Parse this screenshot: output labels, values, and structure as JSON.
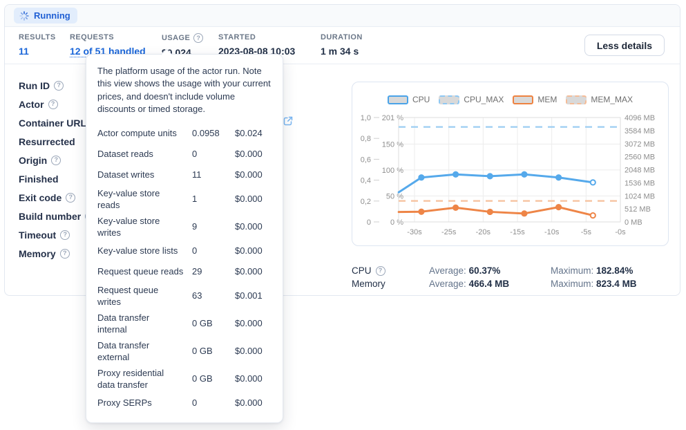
{
  "status": {
    "label": "Running"
  },
  "icons": {
    "help": "?"
  },
  "stats": {
    "results": {
      "label": "RESULTS",
      "value": "11"
    },
    "requests": {
      "label": "REQUESTS",
      "value": "12 of 51 handled"
    },
    "usage": {
      "label": "USAGE",
      "value": "$0.024"
    },
    "started": {
      "label": "STARTED",
      "value": "2023-08-08 10:03"
    },
    "duration": {
      "label": "DURATION",
      "value": "1 m 34 s"
    },
    "less_details_label": "Less details"
  },
  "fields": [
    {
      "label": "Run ID"
    },
    {
      "label": "Actor"
    },
    {
      "label": "Container URL"
    },
    {
      "label": "Resurrected"
    },
    {
      "label": "Origin"
    },
    {
      "label": "Finished"
    },
    {
      "label": "Exit code"
    },
    {
      "label": "Build number"
    },
    {
      "label": "Timeout"
    },
    {
      "label": "Memory"
    }
  ],
  "tooltip": {
    "intro": "The platform usage of the actor run. Note this view shows the usage with your current prices, and doesn't include volume discounts or timed storage.",
    "rows": [
      {
        "label": "Actor compute units",
        "qty": "0.0958",
        "price": "$0.024"
      },
      {
        "label": "Dataset reads",
        "qty": "0",
        "price": "$0.000"
      },
      {
        "label": "Dataset writes",
        "qty": "11",
        "price": "$0.000"
      },
      {
        "label": "Key-value store\nreads",
        "qty": "1",
        "price": "$0.000"
      },
      {
        "label": "Key-value store\nwrites",
        "qty": "9",
        "price": "$0.000"
      },
      {
        "label": "Key-value store lists",
        "qty": "0",
        "price": "$0.000"
      },
      {
        "label": "Request queue reads",
        "qty": "29",
        "price": "$0.000"
      },
      {
        "label": "Request queue\nwrites",
        "qty": "63",
        "price": "$0.001"
      },
      {
        "label": "Data transfer\ninternal",
        "qty": "0 GB",
        "price": "$0.000"
      },
      {
        "label": "Data transfer\nexternal",
        "qty": "0 GB",
        "price": "$0.000"
      },
      {
        "label": "Proxy residential\ndata transfer",
        "qty": "0 GB",
        "price": "$0.000"
      },
      {
        "label": "Proxy SERPs",
        "qty": "0",
        "price": "$0.000"
      }
    ]
  },
  "chart_data": {
    "type": "line",
    "legend": [
      "CPU",
      "CPU_MAX",
      "MEM",
      "MEM_MAX"
    ],
    "x_ticks": [
      "-30s",
      "-25s",
      "-20s",
      "-15s",
      "-10s",
      "-5s",
      "-0s"
    ],
    "left_axis": {
      "unit": "%",
      "max": 201,
      "ticks": [
        0,
        50,
        100,
        150,
        201
      ],
      "normalized_ticks": [
        "0",
        "0,2",
        "0,4",
        "0,6",
        "0,8",
        "1,0"
      ]
    },
    "right_axis": {
      "unit": "MB",
      "max": 4096,
      "ticks": [
        0,
        512,
        1024,
        1536,
        2048,
        2560,
        3072,
        3584,
        4096
      ]
    },
    "series": [
      {
        "name": "CPU",
        "axis": "left",
        "style": "solid",
        "color": "#55a9eb",
        "marker_from": 1,
        "points": [
          [
            -32.3,
            57
          ],
          [
            -29,
            85.5
          ],
          [
            -24,
            91.5
          ],
          [
            -19,
            88
          ],
          [
            -14,
            91.5
          ],
          [
            -9,
            85.5
          ],
          [
            -4,
            76
          ]
        ]
      },
      {
        "name": "CPU_MAX",
        "axis": "left",
        "style": "dashed",
        "color": "#9ccdf2",
        "const": 182.84
      },
      {
        "name": "MEM",
        "axis": "right",
        "style": "solid",
        "color": "#ee8547",
        "marker_from": 1,
        "points": [
          [
            -32.3,
            390
          ],
          [
            -29,
            400
          ],
          [
            -24,
            560
          ],
          [
            -19,
            395
          ],
          [
            -14,
            330
          ],
          [
            -9,
            580
          ],
          [
            -4,
            255
          ]
        ]
      },
      {
        "name": "MEM_MAX",
        "axis": "right",
        "style": "dashed",
        "color": "#f6c09c",
        "const": 823.4
      }
    ]
  },
  "usage_stats": {
    "avg_label": "Average:",
    "max_label": "Maximum:",
    "rows": [
      {
        "label": "CPU",
        "avg": "60.37%",
        "max": "182.84%"
      },
      {
        "label": "Memory",
        "avg": "466.4 MB",
        "max": "823.4 MB"
      }
    ]
  },
  "colors": {
    "accent_blue": "#1a66d9",
    "badge_bg": "#e2edfc",
    "badge_text": "#2160d4",
    "chart_blue": "#55a9eb",
    "chart_blue_dashed": "#9ccdf2",
    "chart_orange": "#ee8547",
    "chart_orange_dashed": "#f6c09c"
  }
}
